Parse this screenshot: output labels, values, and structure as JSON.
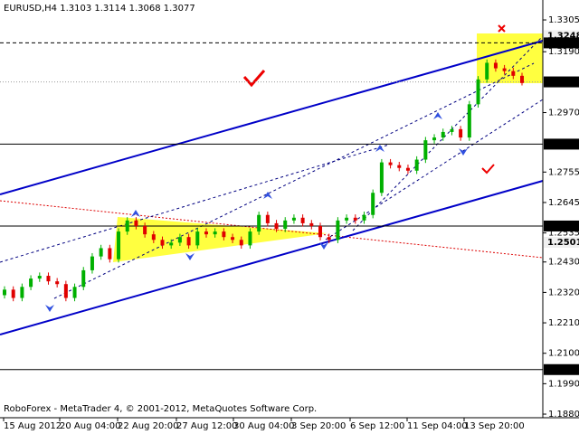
{
  "chart_data": {
    "type": "candlestick",
    "symbol": "EURUSD,H4",
    "footer": "RoboForex - MetaTrader 4, © 2001-2012, MetaQuotes Software Corp.",
    "x_labels": [
      "15 Aug 2012",
      "20 Aug 04:00",
      "22 Aug 20:00",
      "27 Aug 12:00",
      "30 Aug 04:00",
      "3 Sep 20:00",
      "6 Sep 12:00",
      "11 Sep 04:00",
      "13 Sep 20:00"
    ],
    "open": [
      1.231,
      1.233,
      1.23,
      1.234,
      1.237,
      1.238,
      1.236,
      1.235,
      1.23,
      1.234,
      1.24,
      1.245,
      1.248,
      1.244,
      1.254,
      1.258,
      1.256,
      1.253,
      1.251,
      1.249,
      1.25,
      1.252,
      1.249,
      1.254,
      1.253,
      1.254,
      1.252,
      1.251,
      1.249,
      1.254,
      1.26,
      1.257,
      1.255,
      1.258,
      1.259,
      1.257,
      1.256,
      1.252,
      1.251,
      1.258,
      1.259,
      1.258,
      1.26,
      1.268,
      1.279,
      1.278,
      1.277,
      1.276,
      1.28,
      1.287,
      1.288,
      1.29,
      1.291,
      1.288,
      1.3,
      1.309,
      1.315,
      1.313,
      1.312,
      1.3103
    ],
    "high": [
      1.2342,
      1.2342,
      1.2352,
      1.2382,
      1.2392,
      1.2392,
      1.2372,
      1.2362,
      1.2352,
      1.2412,
      1.2462,
      1.2492,
      1.2492,
      1.2552,
      1.2592,
      1.2592,
      1.2572,
      1.2542,
      1.2522,
      1.2512,
      1.2532,
      1.2532,
      1.2552,
      1.2552,
      1.2552,
      1.2552,
      1.2532,
      1.2522,
      1.2552,
      1.2612,
      1.2612,
      1.2582,
      1.2592,
      1.2602,
      1.2602,
      1.2582,
      1.2572,
      1.2532,
      1.2592,
      1.2602,
      1.2602,
      1.2612,
      1.2692,
      1.2802,
      1.2802,
      1.2792,
      1.2782,
      1.2812,
      1.2882,
      1.2892,
      1.2912,
      1.2922,
      1.2922,
      1.3012,
      1.3102,
      1.3162,
      1.3162,
      1.3142,
      1.3132,
      1.3114
    ],
    "low": [
      1.2298,
      1.2288,
      1.2288,
      1.2328,
      1.2358,
      1.2348,
      1.2338,
      1.2288,
      1.2288,
      1.2328,
      1.2388,
      1.2438,
      1.2428,
      1.2428,
      1.2528,
      1.2548,
      1.2518,
      1.2498,
      1.2478,
      1.2478,
      1.2488,
      1.2478,
      1.2478,
      1.2518,
      1.2518,
      1.2508,
      1.2498,
      1.2478,
      1.2478,
      1.2528,
      1.2558,
      1.2538,
      1.2538,
      1.2568,
      1.2558,
      1.2548,
      1.2508,
      1.2498,
      1.2498,
      1.2568,
      1.2568,
      1.2568,
      1.2588,
      1.2668,
      1.2768,
      1.2758,
      1.2748,
      1.2748,
      1.2788,
      1.2858,
      1.2868,
      1.2888,
      1.2868,
      1.2868,
      1.2988,
      1.3078,
      1.3118,
      1.3108,
      1.3091,
      1.3068
    ],
    "close": [
      1.233,
      1.23,
      1.234,
      1.237,
      1.238,
      1.236,
      1.235,
      1.23,
      1.234,
      1.24,
      1.245,
      1.248,
      1.244,
      1.254,
      1.258,
      1.256,
      1.253,
      1.251,
      1.249,
      1.25,
      1.252,
      1.249,
      1.254,
      1.253,
      1.254,
      1.252,
      1.251,
      1.249,
      1.254,
      1.26,
      1.257,
      1.255,
      1.258,
      1.259,
      1.257,
      1.256,
      1.252,
      1.251,
      1.258,
      1.259,
      1.258,
      1.26,
      1.268,
      1.279,
      1.278,
      1.277,
      1.276,
      1.28,
      1.287,
      1.288,
      1.29,
      1.291,
      1.288,
      1.3,
      1.309,
      1.315,
      1.313,
      1.312,
      1.3103,
      1.3077
    ],
    "up_color": "#00b000",
    "down_color": "#e00000",
    "ylim": [
      1.3377,
      1.1867
    ],
    "yticks": [
      1.3305,
      {
        "value": 1.319,
        "label": "1.3190"
      },
      {
        "value": 1.297,
        "label": "1.2970"
      },
      1.2755,
      1.2645,
      1.2535,
      {
        "value": 1.243,
        "label": "1.2430"
      },
      {
        "value": 1.232,
        "label": "1.2320"
      },
      {
        "value": 1.221,
        "label": "1.2210"
      },
      {
        "value": 1.21,
        "label": "1.2100"
      },
      {
        "value": 1.199,
        "label": "1.1990"
      },
      {
        "value": 1.188,
        "label": "1.1880"
      }
    ],
    "levels": [
      1.3248,
      1.3222,
      1.3081,
      1.2856,
      {
        "value": 1.256,
        "label": "1.2560"
      },
      1.2501,
      1.2041
    ],
    "level_styles": [
      "faint",
      "dashed",
      "dotted",
      "solid",
      "solid",
      "faint",
      "solid"
    ]
  }
}
